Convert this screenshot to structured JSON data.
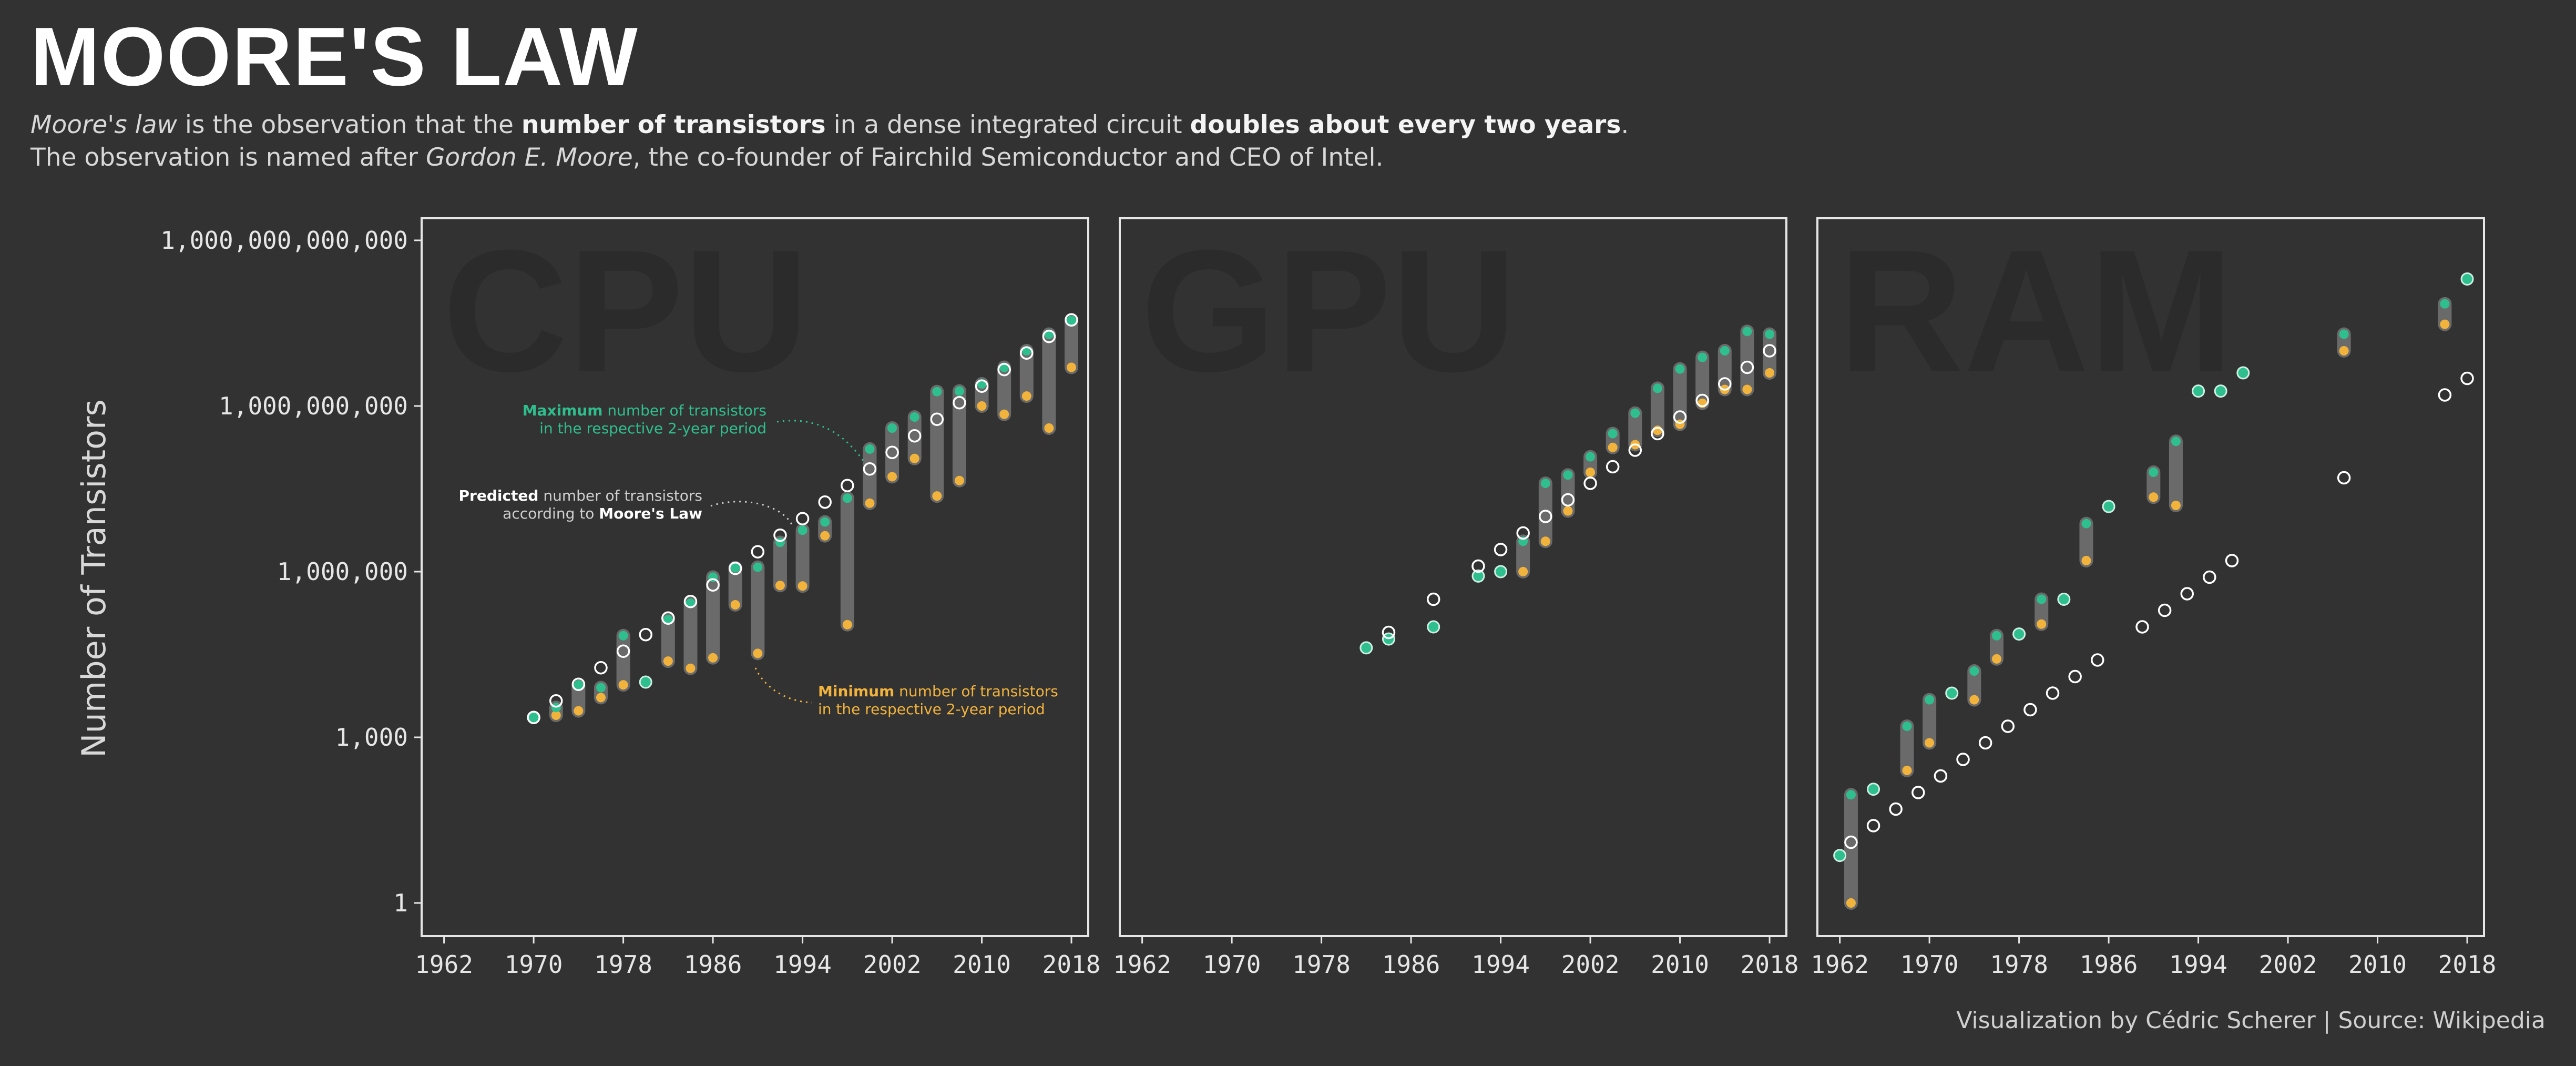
{
  "header": {
    "title": "MOORE'S LAW",
    "sub1_a": "Moore's law",
    "sub1_b": " is the observation that the ",
    "sub1_c": "number of transistors",
    "sub1_d": " in a dense integrated circuit ",
    "sub1_e": "doubles about every two years",
    "sub1_f": ".",
    "sub2_a": "The observation is named after ",
    "sub2_b": "Gordon E. Moore",
    "sub2_c": ", the co-founder of Fairchild Semiconductor and CEO of Intel."
  },
  "footer": {
    "credit": "Visualization by Cédric Scherer  |  Source: Wikipedia"
  },
  "colors": {
    "background": "#323232",
    "max": "#2fbf8f",
    "min": "#f2b33d",
    "predicted": "#ffffff",
    "bar": "#6a6a6a",
    "watermark": "#2b2b2b"
  },
  "annotations": {
    "max_bold": "Maximum",
    "max_rest": " number of transistors",
    "max_line2": "in the respective 2-year period",
    "pred_bold": "Predicted",
    "pred_rest": " number of transistors",
    "pred_line2a": "according to ",
    "pred_line2b": "Moore's Law",
    "min_bold": "Minimum",
    "min_rest": " number of transistors",
    "min_line2": "in the respective 2-year period"
  },
  "chart_data": {
    "type": "scatter",
    "ylabel": "Number of Transistors",
    "y_scale": "log10",
    "ylim_log10": [
      -0.6,
      12.4
    ],
    "y_ticks": [
      {
        "log": 0,
        "label": "1"
      },
      {
        "log": 3,
        "label": "1,000"
      },
      {
        "log": 6,
        "label": "1,000,000"
      },
      {
        "log": 9,
        "label": "1,000,000,000"
      },
      {
        "log": 12,
        "label": "1,000,000,000,000"
      }
    ],
    "xlim": [
      1960,
      2019.5
    ],
    "x_ticks": [
      1962,
      1970,
      1978,
      1986,
      1994,
      2002,
      2010,
      2018
    ],
    "panels": [
      {
        "name": "CPU",
        "watermark": "CPU",
        "groups": [
          {
            "year": 1970,
            "max": 3.36,
            "min": 3.36,
            "pred": 3.36
          },
          {
            "year": 1972,
            "max": 3.54,
            "min": 3.4,
            "pred": 3.66
          },
          {
            "year": 1974,
            "max": 3.95,
            "min": 3.48,
            "pred": 3.96
          },
          {
            "year": 1976,
            "max": 3.9,
            "min": 3.72,
            "pred": 4.26
          },
          {
            "year": 1978,
            "max": 4.84,
            "min": 3.95,
            "pred": 4.56
          },
          {
            "year": 1980,
            "max": 4.0,
            "min": 4.0,
            "pred": 4.86
          },
          {
            "year": 1982,
            "max": 5.13,
            "min": 4.38,
            "pred": 5.16
          },
          {
            "year": 1984,
            "max": 5.43,
            "min": 4.25,
            "pred": 5.46
          },
          {
            "year": 1986,
            "max": 5.9,
            "min": 4.44,
            "pred": 5.76
          },
          {
            "year": 1988,
            "max": 6.07,
            "min": 5.4,
            "pred": 6.06
          },
          {
            "year": 1990,
            "max": 6.08,
            "min": 4.52,
            "pred": 6.36
          },
          {
            "year": 1992,
            "max": 6.53,
            "min": 5.75,
            "pred": 6.66
          },
          {
            "year": 1994,
            "max": 6.75,
            "min": 5.74,
            "pred": 6.96
          },
          {
            "year": 1996,
            "max": 6.9,
            "min": 6.65,
            "pred": 7.26
          },
          {
            "year": 1998,
            "max": 7.33,
            "min": 5.04,
            "pred": 7.56
          },
          {
            "year": 2000,
            "max": 8.22,
            "min": 7.24,
            "pred": 7.86
          },
          {
            "year": 2002,
            "max": 8.6,
            "min": 7.72,
            "pred": 8.16
          },
          {
            "year": 2004,
            "max": 8.8,
            "min": 8.05,
            "pred": 8.46
          },
          {
            "year": 2006,
            "max": 9.26,
            "min": 7.37,
            "pred": 8.76
          },
          {
            "year": 2008,
            "max": 9.27,
            "min": 7.65,
            "pred": 9.06
          },
          {
            "year": 2010,
            "max": 9.4,
            "min": 9.0,
            "pred": 9.36
          },
          {
            "year": 2012,
            "max": 9.7,
            "min": 8.85,
            "pred": 9.66
          },
          {
            "year": 2014,
            "max": 10.0,
            "min": 9.18,
            "pred": 9.96
          },
          {
            "year": 2016,
            "max": 10.3,
            "min": 8.6,
            "pred": 10.26
          },
          {
            "year": 2018,
            "max": 10.55,
            "min": 9.7,
            "pred": 10.56
          }
        ]
      },
      {
        "name": "GPU",
        "watermark": "GPU",
        "groups": [
          {
            "year": 1982,
            "max": 4.62,
            "min": 4.62,
            "pred": null
          },
          {
            "year": 1984,
            "max": 4.78,
            "min": 4.78,
            "pred": 4.9
          },
          {
            "year": 1988,
            "max": 5.0,
            "min": 5.0,
            "pred": 5.5
          },
          {
            "year": 1992,
            "max": 5.92,
            "min": 5.92,
            "pred": 6.1
          },
          {
            "year": 1994,
            "max": 6.0,
            "min": 6.0,
            "pred": 6.4
          },
          {
            "year": 1996,
            "max": 6.55,
            "min": 6.0,
            "pred": 6.7
          },
          {
            "year": 1998,
            "max": 7.6,
            "min": 6.55,
            "pred": 7.0
          },
          {
            "year": 2000,
            "max": 7.75,
            "min": 7.1,
            "pred": 7.3
          },
          {
            "year": 2002,
            "max": 8.08,
            "min": 7.8,
            "pred": 7.6
          },
          {
            "year": 2004,
            "max": 8.5,
            "min": 8.25,
            "pred": 7.9
          },
          {
            "year": 2006,
            "max": 8.87,
            "min": 8.3,
            "pred": 8.2
          },
          {
            "year": 2008,
            "max": 9.32,
            "min": 8.56,
            "pred": 8.5
          },
          {
            "year": 2010,
            "max": 9.67,
            "min": 8.67,
            "pred": 8.8
          },
          {
            "year": 2012,
            "max": 9.88,
            "min": 9.05,
            "pred": 9.1
          },
          {
            "year": 2014,
            "max": 10.0,
            "min": 9.3,
            "pred": 9.4
          },
          {
            "year": 2016,
            "max": 10.35,
            "min": 9.3,
            "pred": 9.7
          },
          {
            "year": 2018,
            "max": 10.3,
            "min": 9.6,
            "pred": 10.0
          }
        ]
      },
      {
        "name": "RAM",
        "watermark": "RAM",
        "groups": [
          {
            "year": 1962,
            "max": 0.86,
            "min": 0.86,
            "pred": null
          },
          {
            "year": 1963,
            "max": 1.96,
            "min": 0.0,
            "pred": 1.1
          },
          {
            "year": 1965,
            "max": 2.06,
            "min": 2.06,
            "pred": 1.4
          },
          {
            "year": 1967,
            "max": null,
            "min": null,
            "pred": 1.7
          },
          {
            "year": 1968,
            "max": 3.2,
            "min": 2.4,
            "pred": null
          },
          {
            "year": 1969,
            "max": null,
            "min": null,
            "pred": 2.0
          },
          {
            "year": 1970,
            "max": 3.68,
            "min": 2.9,
            "pred": null
          },
          {
            "year": 1971,
            "max": null,
            "min": null,
            "pred": 2.3
          },
          {
            "year": 1972,
            "max": 3.8,
            "min": 3.8,
            "pred": null
          },
          {
            "year": 1973,
            "max": null,
            "min": null,
            "pred": 2.6
          },
          {
            "year": 1974,
            "max": 4.2,
            "min": 3.68,
            "pred": null
          },
          {
            "year": 1975,
            "max": null,
            "min": null,
            "pred": 2.9
          },
          {
            "year": 1976,
            "max": 4.84,
            "min": 4.42,
            "pred": null
          },
          {
            "year": 1977,
            "max": null,
            "min": null,
            "pred": 3.2
          },
          {
            "year": 1978,
            "max": 4.87,
            "min": 4.87,
            "pred": null
          },
          {
            "year": 1979,
            "max": null,
            "min": null,
            "pred": 3.5
          },
          {
            "year": 1980,
            "max": 5.5,
            "min": 5.05,
            "pred": null
          },
          {
            "year": 1981,
            "max": null,
            "min": null,
            "pred": 3.8
          },
          {
            "year": 1982,
            "max": 5.5,
            "min": 5.5,
            "pred": null
          },
          {
            "year": 1983,
            "max": null,
            "min": null,
            "pred": 4.1
          },
          {
            "year": 1984,
            "max": 6.87,
            "min": 6.2,
            "pred": null
          },
          {
            "year": 1985,
            "max": null,
            "min": null,
            "pred": 4.4
          },
          {
            "year": 1986,
            "max": 7.18,
            "min": 7.18,
            "pred": null
          },
          {
            "year": 1989,
            "max": null,
            "min": null,
            "pred": 5.0
          },
          {
            "year": 1990,
            "max": 7.8,
            "min": 7.35,
            "pred": null
          },
          {
            "year": 1991,
            "max": null,
            "min": null,
            "pred": 5.3
          },
          {
            "year": 1992,
            "max": 8.36,
            "min": 7.2,
            "pred": null
          },
          {
            "year": 1993,
            "max": null,
            "min": null,
            "pred": 5.6
          },
          {
            "year": 1994,
            "max": 9.27,
            "min": 9.27,
            "pred": null
          },
          {
            "year": 1995,
            "max": null,
            "min": null,
            "pred": 5.9
          },
          {
            "year": 1996,
            "max": 9.27,
            "min": 9.27,
            "pred": null
          },
          {
            "year": 1997,
            "max": null,
            "min": null,
            "pred": 6.2
          },
          {
            "year": 1998,
            "max": 9.6,
            "min": 9.6,
            "pred": null
          },
          {
            "year": 2007,
            "max": 10.3,
            "min": 10.0,
            "pred": 7.7
          },
          {
            "year": 2016,
            "max": 10.85,
            "min": 10.48,
            "pred": 9.2
          },
          {
            "year": 2018,
            "max": 11.3,
            "min": null,
            "pred": 9.5
          }
        ]
      }
    ]
  }
}
